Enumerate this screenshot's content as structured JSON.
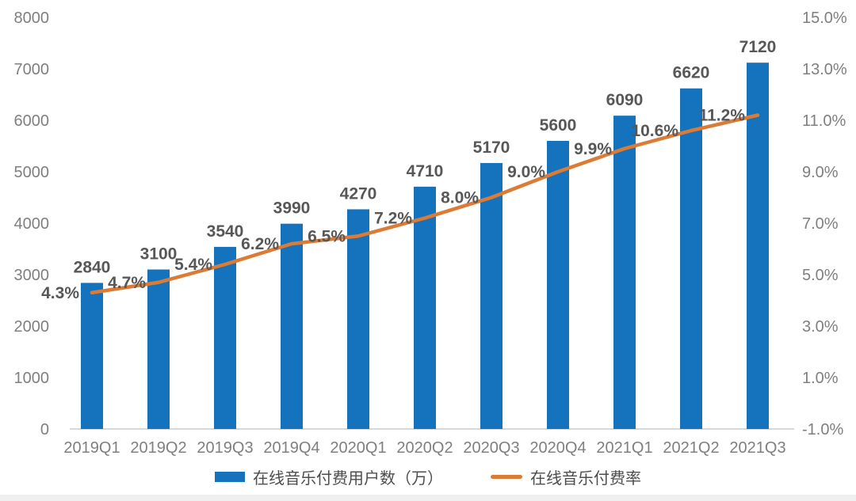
{
  "chart_data": {
    "type": "bar+line",
    "title": "",
    "categories": [
      "2019Q1",
      "2019Q2",
      "2019Q3",
      "2019Q4",
      "2020Q1",
      "2020Q2",
      "2020Q3",
      "2020Q4",
      "2021Q1",
      "2021Q2",
      "2021Q3"
    ],
    "series": [
      {
        "name": "在线音乐付费用户数（万）",
        "type": "bar",
        "axis": "left",
        "color": "#1573BD",
        "values": [
          2840,
          3100,
          3540,
          3990,
          4270,
          4710,
          5170,
          5600,
          6090,
          6620,
          7120
        ],
        "labels": [
          "2840",
          "3100",
          "3540",
          "3990",
          "4270",
          "4710",
          "5170",
          "5600",
          "6090",
          "6620",
          "7120"
        ]
      },
      {
        "name": "在线音乐付费率",
        "type": "line",
        "axis": "right",
        "color": "#DC7B35",
        "values": [
          4.3,
          4.7,
          5.4,
          6.2,
          6.5,
          7.2,
          8.0,
          9.0,
          9.9,
          10.6,
          11.2
        ],
        "labels": [
          "4.3%",
          "4.7%",
          "5.4%",
          "6.2%",
          "6.5%",
          "7.2%",
          "8.0%",
          "9.0%",
          "9.9%",
          "10.6%",
          "11.2%"
        ]
      }
    ],
    "left_axis": {
      "min": 0,
      "max": 8000,
      "step": 1000,
      "ticks": [
        "8000",
        "7000",
        "6000",
        "5000",
        "4000",
        "3000",
        "2000",
        "1000",
        "0"
      ]
    },
    "right_axis": {
      "min": -1,
      "max": 15,
      "step": 2,
      "ticks": [
        "15.0%",
        "13.0%",
        "11.0%",
        "9.0%",
        "7.0%",
        "5.0%",
        "3.0%",
        "1.0%",
        "-1.0%"
      ]
    },
    "grid": false,
    "legend_position": "bottom"
  },
  "colors": {
    "bar": "#1573BD",
    "line": "#DC7B35",
    "axis_text": "#7F7F7F",
    "data_label": "#575757",
    "axis_line": "#D8D8D8",
    "bottom_strip": "#EFEFEF",
    "background": "#FFFFFF"
  }
}
